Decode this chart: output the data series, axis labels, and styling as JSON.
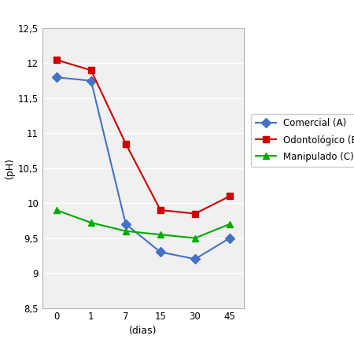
{
  "x_positions": [
    0,
    1,
    2,
    3,
    4,
    5
  ],
  "x_labels": [
    "0",
    "1",
    "7",
    "15",
    "30",
    "45"
  ],
  "comercial_A": [
    11.8,
    11.75,
    9.7,
    9.3,
    9.2,
    9.5
  ],
  "odontologico_B": [
    12.05,
    11.9,
    10.85,
    9.9,
    9.85,
    10.1
  ],
  "manipulado_C": [
    9.9,
    9.72,
    9.6,
    9.55,
    9.5,
    9.7
  ],
  "color_A": "#4472C4",
  "color_B": "#CC0000",
  "color_C": "#00AA00",
  "ylabel": "(pH)",
  "xlabel": "(dias)",
  "ylim": [
    8.5,
    12.5
  ],
  "yticks": [
    8.5,
    9.0,
    9.5,
    10.0,
    10.5,
    11.0,
    11.5,
    12.0,
    12.5
  ],
  "ytick_labels": [
    "8,5",
    "9",
    "9,5",
    "10",
    "10,5",
    "11",
    "11,5",
    "12",
    "12,5"
  ],
  "legend_A": "Comercial (A)",
  "legend_B": "Odontológico (B)",
  "legend_C": "Manipulado (C)",
  "bg_color": "#f0f0f0",
  "marker_A": "D",
  "marker_B": "s",
  "marker_C": "^",
  "grid_color": "#ffffff",
  "spine_color": "#aaaaaa"
}
